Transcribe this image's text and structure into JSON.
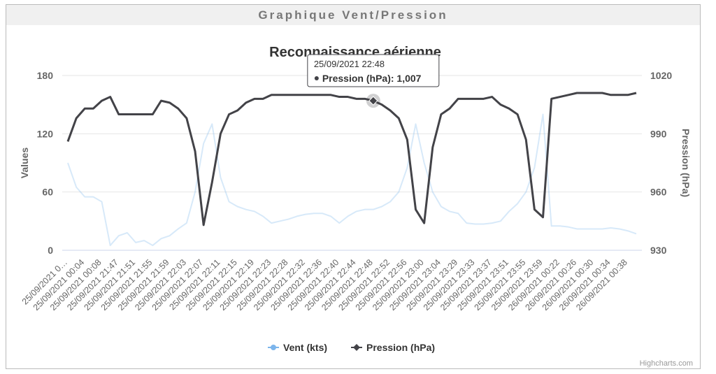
{
  "header": {
    "title": "Graphique Vent/Pression"
  },
  "chart_data": {
    "type": "line",
    "title": "Reconnaissance aérienne",
    "y_label": "Values",
    "y2_label": "Pression (hPa)",
    "credits": "Highcharts.com",
    "categories": [
      "25/09/2021 0…",
      null,
      "25/09/2021 00:04",
      null,
      "25/09/2021 00:08",
      null,
      "25/09/2021 21:47",
      null,
      "25/09/2021 21:51",
      null,
      "25/09/2021 21:55",
      null,
      "25/09/2021 21:59",
      null,
      "25/09/2021 22:03",
      null,
      "25/09/2021 22:07",
      null,
      "25/09/2021 22:11",
      null,
      "25/09/2021 22:15",
      null,
      "25/09/2021 22:19",
      null,
      "25/09/2021 22:23",
      null,
      "25/09/2021 22:28",
      null,
      "25/09/2021 22:32",
      null,
      "25/09/2021 22:36",
      null,
      "25/09/2021 22:40",
      null,
      "25/09/2021 22:44",
      null,
      "25/09/2021 22:48",
      null,
      "25/09/2021 22:52",
      null,
      "25/09/2021 22:56",
      null,
      "25/09/2021 23:00",
      null,
      "25/09/2021 23:04",
      null,
      "25/09/2021 23:29",
      null,
      "25/09/2021 23:33",
      null,
      "25/09/2021 23:37",
      null,
      "25/09/2021 23:51",
      null,
      "25/09/2021 23:55",
      null,
      "25/09/2021 23:59",
      null,
      "26/09/2021 00:22",
      null,
      "26/09/2021 00:26",
      null,
      "26/09/2021 00:30",
      null,
      "26/09/2021 00:34",
      null,
      "26/09/2021 00:38",
      null
    ],
    "series": [
      {
        "name": "Vent (kts)",
        "color": "#7cb5ec",
        "axis": "y",
        "values": [
          90,
          65,
          55,
          55,
          50,
          5,
          15,
          18,
          8,
          10,
          5,
          12,
          15,
          22,
          28,
          60,
          110,
          130,
          75,
          50,
          45,
          42,
          40,
          35,
          28,
          30,
          32,
          35,
          37,
          38,
          38,
          35,
          28,
          35,
          40,
          42,
          42,
          45,
          50,
          60,
          85,
          130,
          90,
          60,
          45,
          40,
          38,
          28,
          27,
          27,
          28,
          30,
          40,
          48,
          60,
          85,
          140,
          25,
          25,
          24,
          22,
          22,
          22,
          22,
          23,
          22,
          20,
          17
        ]
      },
      {
        "name": "Pression (hPa)",
        "color": "#434348",
        "axis": "y2",
        "values": [
          986,
          998,
          1003,
          1003,
          1007,
          1009,
          1000,
          1000,
          1000,
          1000,
          1000,
          1007,
          1006,
          1003,
          998,
          981,
          943,
          965,
          990,
          1000,
          1002,
          1006,
          1008,
          1008,
          1010,
          1010,
          1010,
          1010,
          1010,
          1010,
          1010,
          1010,
          1009,
          1009,
          1008,
          1008,
          1007,
          1005,
          1002,
          998,
          987,
          951,
          944,
          983,
          1000,
          1003,
          1008,
          1008,
          1008,
          1008,
          1009,
          1005,
          1003,
          1000,
          987,
          951,
          947,
          1008,
          1009,
          1010,
          1011,
          1011,
          1011,
          1011,
          1010,
          1010,
          1010,
          1011
        ]
      }
    ],
    "ylim": [
      0,
      180
    ],
    "yticks": [
      0,
      60,
      120,
      180
    ],
    "y2lim": [
      930,
      1020
    ],
    "y2ticks": [
      930,
      960,
      990,
      1020
    ],
    "grid": true,
    "tooltip": {
      "title": "25/09/2021 22:48",
      "text": "Pression (hPa): 1,007"
    }
  }
}
